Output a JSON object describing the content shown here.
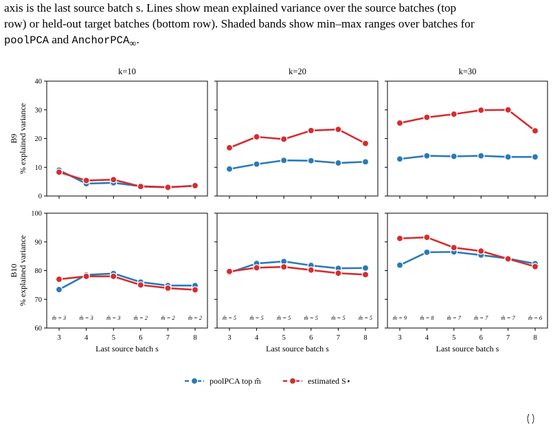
{
  "caption": {
    "line1": "axis is the last source batch s. Lines show mean explained variance over the source batches (top",
    "line2": "row) or held-out target batches (bottom row). Shaded bands show min–max ranges over batches for",
    "line3_code1": "poolPCA",
    "line3_and": " and ",
    "line3_code2": "AnchorPCA",
    "line3_sub": "∞",
    "line3_end": "."
  },
  "colors": {
    "pool": "#2a7ab5",
    "est": "#d62c2f",
    "axis": "#000000"
  },
  "legend": [
    {
      "label": "poolPCA top m̂",
      "color": "#2a7ab5"
    },
    {
      "label": "estimated S⋆",
      "color": "#d62c2f"
    }
  ],
  "chart_data": [
    {
      "type": "line",
      "title": "k=10",
      "ylabel": "B9\n% explained variance",
      "xlabel": "",
      "ylim": [
        0,
        40
      ],
      "yticks": [
        0,
        10,
        20,
        30,
        40
      ],
      "x": [
        3,
        4,
        5,
        6,
        7,
        8
      ],
      "series": [
        {
          "name": "poolPCA top m̂",
          "values": [
            9.0,
            4.3,
            4.6,
            3.4,
            3.1,
            3.5
          ]
        },
        {
          "name": "estimated S⋆",
          "values": [
            8.3,
            5.4,
            5.7,
            3.3,
            3.0,
            3.6
          ]
        }
      ]
    },
    {
      "type": "line",
      "title": "k=20",
      "xlabel": "",
      "ylim": [
        0,
        40
      ],
      "yticks": [
        0,
        10,
        20,
        30,
        40
      ],
      "x": [
        3,
        4,
        5,
        6,
        7,
        8
      ],
      "series": [
        {
          "name": "poolPCA top m̂",
          "values": [
            9.4,
            11.1,
            12.4,
            12.3,
            11.5,
            11.9
          ]
        },
        {
          "name": "estimated S⋆",
          "values": [
            16.8,
            20.6,
            19.8,
            22.8,
            23.2,
            18.3
          ]
        }
      ]
    },
    {
      "type": "line",
      "title": "k=30",
      "xlabel": "",
      "ylim": [
        0,
        40
      ],
      "yticks": [
        0,
        10,
        20,
        30,
        40
      ],
      "x": [
        3,
        4,
        5,
        6,
        7,
        8
      ],
      "series": [
        {
          "name": "poolPCA top m̂",
          "values": [
            12.9,
            14.0,
            13.8,
            14.0,
            13.6,
            13.6
          ]
        },
        {
          "name": "estimated S⋆",
          "values": [
            25.4,
            27.4,
            28.5,
            29.9,
            30.0,
            22.7
          ]
        }
      ]
    },
    {
      "type": "line",
      "title": "",
      "ylabel": "B10\n% explained variance",
      "xlabel": "Last source batch s",
      "ylim": [
        60,
        100
      ],
      "yticks": [
        60,
        70,
        80,
        90,
        100
      ],
      "x": [
        3,
        4,
        5,
        6,
        7,
        8
      ],
      "annotations": [
        "m̂ = 3",
        "m̂ = 3",
        "m̂ = 3",
        "m̂ = 2",
        "m̂ = 2",
        "m̂ = 2"
      ],
      "series": [
        {
          "name": "poolPCA top m̂",
          "values": [
            73.4,
            78.5,
            79.0,
            76.0,
            74.8,
            74.8
          ]
        },
        {
          "name": "estimated S⋆",
          "values": [
            77.0,
            78.0,
            78.0,
            75.0,
            73.9,
            73.3
          ]
        }
      ]
    },
    {
      "type": "line",
      "title": "",
      "xlabel": "Last source batch s",
      "ylim": [
        60,
        100
      ],
      "yticks": [
        60,
        70,
        80,
        90,
        100
      ],
      "x": [
        3,
        4,
        5,
        6,
        7,
        8
      ],
      "annotations": [
        "m̂ = 5",
        "m̂ = 5",
        "m̂ = 5",
        "m̂ = 5",
        "m̂ = 5",
        "m̂ = 5"
      ],
      "series": [
        {
          "name": "poolPCA top m̂",
          "values": [
            79.3,
            82.5,
            83.2,
            81.8,
            80.8,
            80.9
          ]
        },
        {
          "name": "estimated S⋆",
          "values": [
            79.7,
            81.0,
            81.3,
            80.2,
            79.1,
            78.6
          ]
        }
      ]
    },
    {
      "type": "line",
      "title": "",
      "xlabel": "Last source batch s",
      "ylim": [
        60,
        100
      ],
      "yticks": [
        60,
        70,
        80,
        90,
        100
      ],
      "x": [
        3,
        4,
        5,
        6,
        7,
        8
      ],
      "annotations": [
        "m̂ = 9",
        "m̂ = 8",
        "m̂ = 7",
        "m̂ = 7",
        "m̂ = 7",
        "m̂ = 6"
      ],
      "series": [
        {
          "name": "poolPCA top m̂",
          "values": [
            81.9,
            86.4,
            86.5,
            85.4,
            84.2,
            82.4
          ]
        },
        {
          "name": "estimated S⋆",
          "values": [
            91.2,
            91.6,
            88.0,
            86.8,
            84.1,
            81.4
          ]
        }
      ]
    }
  ]
}
